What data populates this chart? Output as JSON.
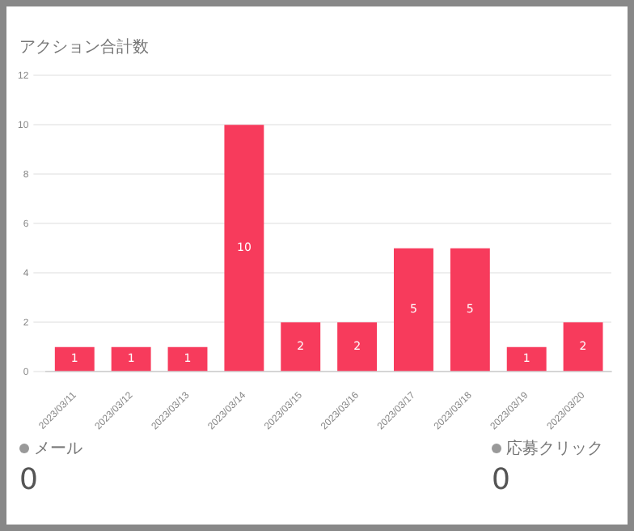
{
  "chart_data": {
    "type": "bar",
    "title": "アクション合計数",
    "categories": [
      "2023/03/11",
      "2023/03/12",
      "2023/03/13",
      "2023/03/14",
      "2023/03/15",
      "2023/03/16",
      "2023/03/17",
      "2023/03/18",
      "2023/03/19",
      "2023/03/20"
    ],
    "values": [
      1,
      1,
      1,
      10,
      2,
      2,
      5,
      5,
      1,
      2
    ],
    "color": "#f73b5c",
    "ylim": [
      0,
      12
    ],
    "yticks": [
      0,
      2,
      4,
      6,
      8,
      10,
      12
    ],
    "grid": "y",
    "data_labels": true,
    "legend": false,
    "annotations": [
      "メール",
      "0",
      "応募クリック",
      "0"
    ]
  }
}
